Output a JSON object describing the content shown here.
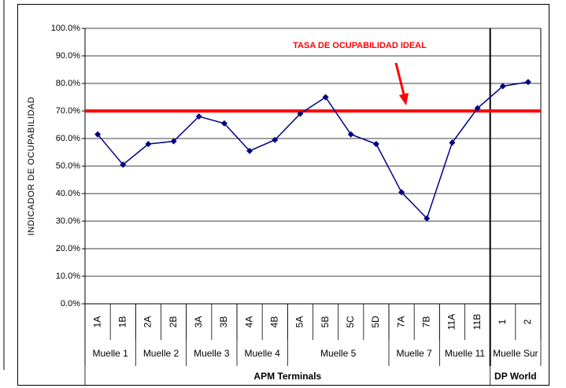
{
  "chart_data": {
    "type": "line",
    "y_label": "INDICADOR DE OCUPABILIDAD",
    "annotation": "TASA DE OCUPABILIDAD IDEAL",
    "reference_value": 70,
    "reference_color": "#ff0000",
    "categories": [
      "1A",
      "1B",
      "2A",
      "2B",
      "3A",
      "3B",
      "4A",
      "4B",
      "5A",
      "5B",
      "5C",
      "5D",
      "7A",
      "7B",
      "11A",
      "11B",
      "1",
      "2"
    ],
    "series": [
      {
        "name": "Ocupabilidad",
        "color": "#000080",
        "values": [
          61.5,
          50.5,
          58,
          59,
          68,
          65.5,
          55.5,
          59.5,
          69,
          75,
          61.5,
          58,
          40.5,
          31,
          58.5,
          71,
          79,
          80.5
        ]
      }
    ],
    "groups": [
      {
        "name": "Muelle 1",
        "size": 2
      },
      {
        "name": "Muelle 2",
        "size": 2
      },
      {
        "name": "Muelle 3",
        "size": 2
      },
      {
        "name": "Muelle 4",
        "size": 2
      },
      {
        "name": "Muelle 5",
        "size": 4
      },
      {
        "name": "Muelle 7",
        "size": 2
      },
      {
        "name": "Muelle 11",
        "size": 2
      },
      {
        "name": "Muelle Sur",
        "size": 2
      }
    ],
    "supergroups": [
      {
        "name": "APM Terminals",
        "size": 16
      },
      {
        "name": "DP World",
        "size": 2
      }
    ],
    "ylim": [
      0,
      100
    ],
    "yticks": [
      {
        "value": 0,
        "label": "0.0%"
      },
      {
        "value": 10,
        "label": "10.0%"
      },
      {
        "value": 20,
        "label": "20.0%"
      },
      {
        "value": 30,
        "label": "30.0%"
      },
      {
        "value": 40,
        "label": "40.0%"
      },
      {
        "value": 50,
        "label": "50.0%"
      },
      {
        "value": 60,
        "label": "60.0%"
      },
      {
        "value": 70,
        "label": "70.0%"
      },
      {
        "value": 80,
        "label": "80.0%"
      },
      {
        "value": 90,
        "label": "90.0%"
      },
      {
        "value": 100,
        "label": "100.0%"
      }
    ],
    "grid": true
  }
}
